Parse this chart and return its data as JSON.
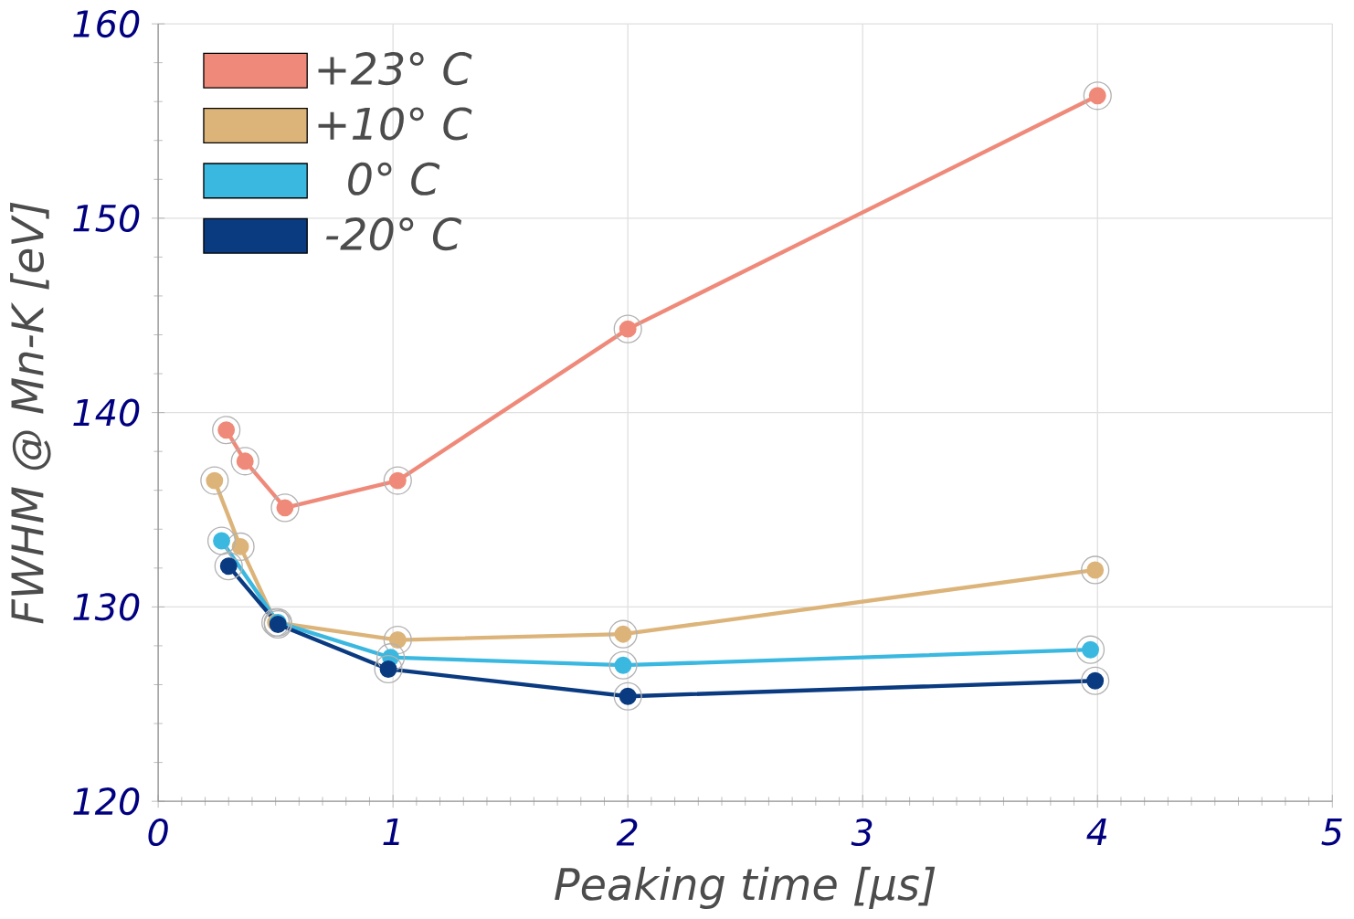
{
  "chart_data": {
    "type": "line",
    "xlabel": "Peaking time [µs]",
    "ylabel": "FWHM @ Mn-K [eV]",
    "xlim": [
      0,
      5
    ],
    "xticks": [
      0,
      1,
      2,
      3,
      4,
      5
    ],
    "ylim": [
      120,
      160
    ],
    "yticks": [
      120,
      130,
      140,
      150,
      160
    ],
    "grid": true,
    "legend": "top left",
    "marker": "circle",
    "line_style": "solid",
    "series": [
      {
        "name": "+23° C",
        "color": "#ef8a7a",
        "x": [
          0.29,
          0.37,
          0.54,
          1.02,
          2.0,
          4.0
        ],
        "values": [
          139.1,
          137.5,
          135.1,
          136.5,
          144.3,
          156.3
        ]
      },
      {
        "name": "+10° C",
        "color": "#dcb47a",
        "x": [
          0.24,
          0.35,
          0.5,
          1.02,
          1.98,
          3.99
        ],
        "values": [
          136.5,
          133.1,
          129.2,
          128.3,
          128.6,
          131.9
        ]
      },
      {
        "name": "0° C",
        "color": "#3bb8e0",
        "x": [
          0.27,
          0.51,
          0.99,
          1.98,
          3.97
        ],
        "values": [
          133.4,
          129.2,
          127.4,
          127.0,
          127.8
        ]
      },
      {
        "name": "-20° C",
        "color": "#0a3a80",
        "x": [
          0.3,
          0.51,
          0.98,
          2.0,
          3.99
        ],
        "values": [
          132.1,
          129.1,
          126.8,
          125.4,
          126.2
        ]
      }
    ]
  }
}
